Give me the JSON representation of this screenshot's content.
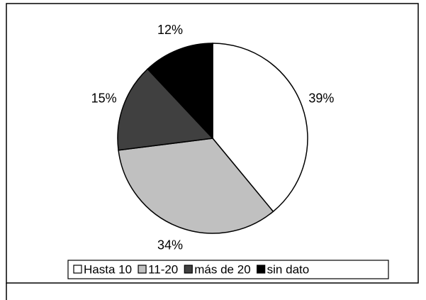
{
  "chart_data": {
    "type": "pie",
    "categories": [
      "Hasta 10",
      "11-20",
      "más de 20",
      "sin dato"
    ],
    "values": [
      39,
      34,
      15,
      12
    ],
    "value_labels": [
      "39%",
      "34%",
      "15%",
      "12%"
    ],
    "colors": [
      "#ffffff",
      "#c0c0c0",
      "#404040",
      "#000000"
    ]
  }
}
